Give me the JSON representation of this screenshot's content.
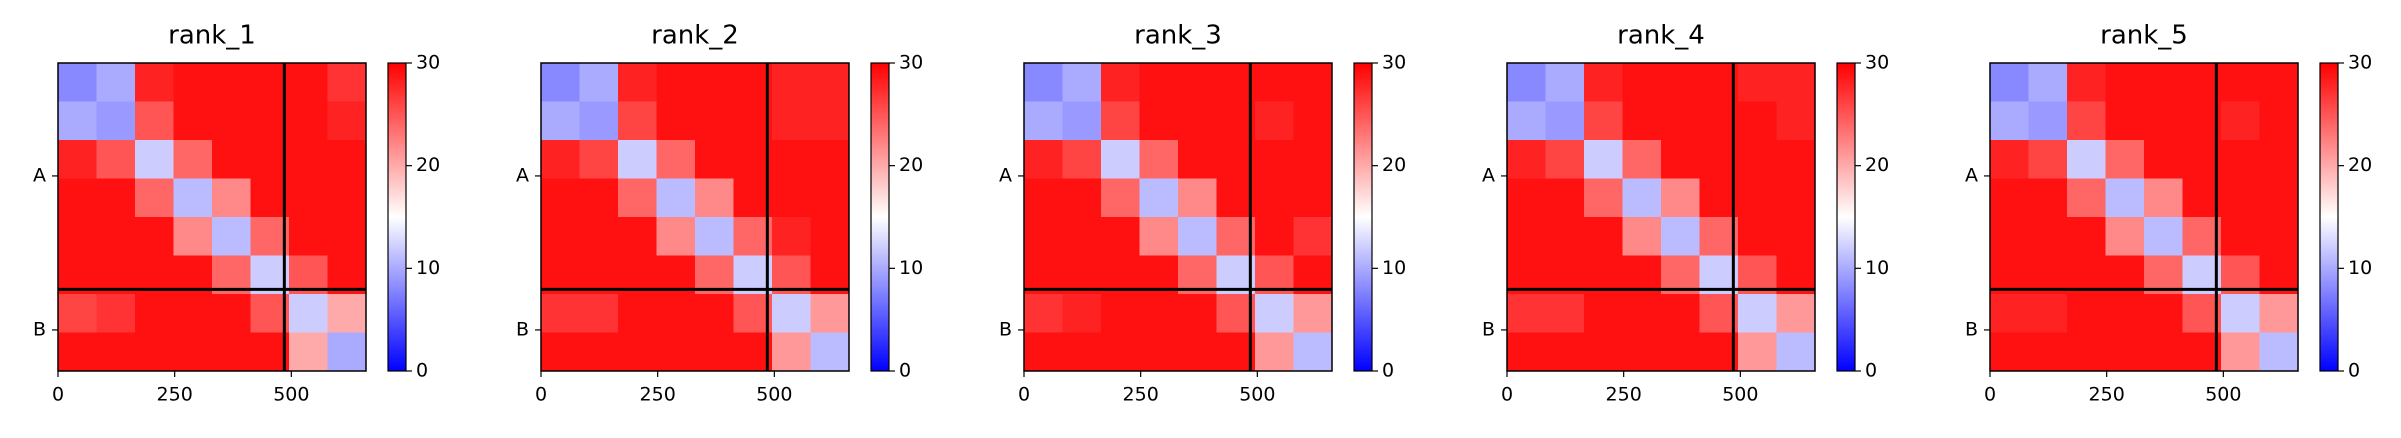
{
  "chart_data": [
    {
      "type": "heatmap",
      "title": "rank_1",
      "xlim": [
        0,
        660
      ],
      "ylim": [
        660,
        0
      ],
      "xticks": [
        0,
        250,
        500
      ],
      "yticks": [
        {
          "value": 242,
          "label": "A"
        },
        {
          "value": 572,
          "label": "B"
        }
      ],
      "chain_breaks": [
        485
      ],
      "clim": [
        0,
        30
      ],
      "cticks": [
        0,
        10,
        20,
        30
      ],
      "cmap_colors": [
        "#0000ff",
        "#ffffff",
        "#ff0000"
      ],
      "values": [
        [
          8,
          10,
          28,
          29,
          29,
          29,
          29,
          27
        ],
        [
          10,
          9,
          25,
          29,
          29,
          29,
          29,
          28
        ],
        [
          28,
          25,
          12,
          24,
          29,
          29,
          29,
          29
        ],
        [
          29,
          29,
          24,
          11,
          22,
          29,
          29,
          29
        ],
        [
          29,
          29,
          29,
          22,
          11,
          24,
          29,
          29
        ],
        [
          29,
          29,
          29,
          29,
          24,
          12,
          25,
          29
        ],
        [
          26,
          27,
          29,
          29,
          29,
          25,
          12,
          20
        ],
        [
          29,
          29,
          29,
          29,
          29,
          29,
          20,
          10
        ]
      ]
    },
    {
      "type": "heatmap",
      "title": "rank_2",
      "xlim": [
        0,
        660
      ],
      "ylim": [
        660,
        0
      ],
      "xticks": [
        0,
        250,
        500
      ],
      "yticks": [
        {
          "value": 242,
          "label": "A"
        },
        {
          "value": 572,
          "label": "B"
        }
      ],
      "chain_breaks": [
        485
      ],
      "clim": [
        0,
        30
      ],
      "cticks": [
        0,
        10,
        20,
        30
      ],
      "cmap_colors": [
        "#0000ff",
        "#ffffff",
        "#ff0000"
      ],
      "values": [
        [
          8,
          10,
          28,
          29,
          29,
          29,
          28,
          28
        ],
        [
          10,
          9,
          26,
          29,
          29,
          29,
          28,
          28
        ],
        [
          28,
          26,
          12,
          24,
          29,
          29,
          29,
          29
        ],
        [
          29,
          29,
          24,
          11,
          22,
          29,
          29,
          29
        ],
        [
          29,
          29,
          29,
          22,
          11,
          24,
          28,
          29
        ],
        [
          29,
          29,
          29,
          29,
          24,
          12,
          25,
          29
        ],
        [
          27,
          27,
          29,
          29,
          29,
          25,
          12,
          21
        ],
        [
          29,
          29,
          29,
          29,
          29,
          29,
          21,
          11
        ]
      ]
    },
    {
      "type": "heatmap",
      "title": "rank_3",
      "xlim": [
        0,
        660
      ],
      "ylim": [
        660,
        0
      ],
      "xticks": [
        0,
        250,
        500
      ],
      "yticks": [
        {
          "value": 242,
          "label": "A"
        },
        {
          "value": 572,
          "label": "B"
        }
      ],
      "chain_breaks": [
        485
      ],
      "clim": [
        0,
        30
      ],
      "cticks": [
        0,
        10,
        20,
        30
      ],
      "cmap_colors": [
        "#0000ff",
        "#ffffff",
        "#ff0000"
      ],
      "values": [
        [
          8,
          10,
          28,
          29,
          29,
          29,
          29,
          29
        ],
        [
          10,
          9,
          26,
          29,
          29,
          29,
          28,
          29
        ],
        [
          28,
          26,
          12,
          24,
          29,
          29,
          29,
          29
        ],
        [
          29,
          29,
          24,
          11,
          22,
          29,
          29,
          29
        ],
        [
          29,
          29,
          29,
          22,
          11,
          24,
          29,
          27
        ],
        [
          29,
          29,
          29,
          29,
          24,
          12,
          25,
          29
        ],
        [
          27,
          28,
          29,
          29,
          29,
          25,
          12,
          21
        ],
        [
          29,
          29,
          29,
          29,
          29,
          29,
          21,
          11
        ]
      ]
    },
    {
      "type": "heatmap",
      "title": "rank_4",
      "xlim": [
        0,
        660
      ],
      "ylim": [
        660,
        0
      ],
      "xticks": [
        0,
        250,
        500
      ],
      "yticks": [
        {
          "value": 242,
          "label": "A"
        },
        {
          "value": 572,
          "label": "B"
        }
      ],
      "chain_breaks": [
        485
      ],
      "clim": [
        0,
        30
      ],
      "cticks": [
        0,
        10,
        20,
        30
      ],
      "cmap_colors": [
        "#0000ff",
        "#ffffff",
        "#ff0000"
      ],
      "values": [
        [
          8,
          10,
          28,
          29,
          29,
          29,
          28,
          28
        ],
        [
          10,
          9,
          26,
          29,
          29,
          29,
          29,
          28
        ],
        [
          28,
          26,
          12,
          24,
          29,
          29,
          29,
          29
        ],
        [
          29,
          29,
          24,
          11,
          22,
          29,
          29,
          29
        ],
        [
          29,
          29,
          29,
          22,
          11,
          24,
          29,
          29
        ],
        [
          29,
          29,
          29,
          29,
          24,
          12,
          25,
          29
        ],
        [
          27,
          27,
          29,
          29,
          29,
          25,
          12,
          21
        ],
        [
          29,
          29,
          29,
          29,
          29,
          29,
          21,
          11
        ]
      ]
    },
    {
      "type": "heatmap",
      "title": "rank_5",
      "xlim": [
        0,
        660
      ],
      "ylim": [
        660,
        0
      ],
      "xticks": [
        0,
        250,
        500
      ],
      "yticks": [
        {
          "value": 242,
          "label": "A"
        },
        {
          "value": 572,
          "label": "B"
        }
      ],
      "chain_breaks": [
        485
      ],
      "clim": [
        0,
        30
      ],
      "cticks": [
        0,
        10,
        20,
        30
      ],
      "cmap_colors": [
        "#0000ff",
        "#ffffff",
        "#ff0000"
      ],
      "values": [
        [
          8,
          10,
          28,
          29,
          29,
          29,
          29,
          29
        ],
        [
          10,
          9,
          26,
          29,
          29,
          29,
          28,
          29
        ],
        [
          28,
          26,
          12,
          24,
          29,
          29,
          29,
          29
        ],
        [
          29,
          29,
          24,
          11,
          22,
          29,
          29,
          29
        ],
        [
          29,
          29,
          29,
          22,
          11,
          24,
          29,
          29
        ],
        [
          29,
          29,
          29,
          29,
          24,
          12,
          25,
          29
        ],
        [
          28,
          28,
          29,
          29,
          29,
          25,
          12,
          21
        ],
        [
          29,
          29,
          29,
          29,
          29,
          29,
          21,
          11
        ]
      ]
    }
  ]
}
